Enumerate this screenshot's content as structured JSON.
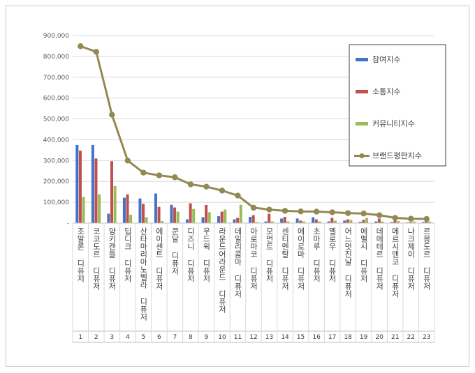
{
  "chart_data": {
    "type": "bar",
    "categories": [
      "조말론 디퓨저",
      "코코도르 디퓨저",
      "양키캔들 디퓨저",
      "딥디크 디퓨저",
      "산타마리아노벨라 디퓨저",
      "에이센트 디퓨저",
      "쿤달 디퓨저",
      "디즈니 디퓨저",
      "우드윅 디퓨저",
      "라운드어라운드 디퓨저",
      "데일리콤마 디퓨저",
      "아로마코 디퓨저",
      "모먼트 디퓨저",
      "센티멘탈 디퓨저",
      "에이로마 디퓨저",
      "초마루 디퓨저",
      "멜로우 디퓨저",
      "어느멋진날 디퓨저",
      "에멜시 디퓨저",
      "데메테르 디퓨저",
      "메르시앤코 디퓨저",
      "나크제이 디퓨저",
      "르몽도르 디퓨저"
    ],
    "index_labels": [
      "1",
      "2",
      "3",
      "4",
      "5",
      "6",
      "7",
      "8",
      "9",
      "10",
      "11",
      "12",
      "13",
      "14",
      "15",
      "16",
      "17",
      "18",
      "19",
      "20",
      "21",
      "22",
      "23"
    ],
    "series": [
      {
        "name": "참여지수",
        "kind": "bar",
        "color": "#4472c4",
        "values": [
          375000,
          375000,
          45000,
          122000,
          118000,
          142000,
          88000,
          18000,
          28000,
          33000,
          18000,
          30000,
          8000,
          22000,
          22000,
          28000,
          8000,
          12000,
          6000,
          8000,
          5000,
          3000,
          5000
        ]
      },
      {
        "name": "소통지수",
        "kind": "bar",
        "color": "#c0504d",
        "values": [
          348000,
          310000,
          297000,
          138000,
          92000,
          78000,
          75000,
          95000,
          87000,
          55000,
          25000,
          38000,
          45000,
          30000,
          12000,
          18000,
          25000,
          18000,
          15000,
          22000,
          12000,
          5000,
          8000
        ]
      },
      {
        "name": "커뮤니티지수",
        "kind": "bar",
        "color": "#9bbb59",
        "values": [
          125000,
          138000,
          178000,
          40000,
          28000,
          10000,
          55000,
          68000,
          52000,
          65000,
          88000,
          5000,
          8000,
          8000,
          8000,
          8000,
          12000,
          15000,
          25000,
          8000,
          10000,
          8000,
          8000
        ]
      },
      {
        "name": "브랜드평판지수",
        "kind": "line",
        "color": "#938953",
        "values": [
          849000,
          822000,
          520000,
          300000,
          242000,
          229000,
          220000,
          186000,
          175000,
          156000,
          132000,
          74000,
          65000,
          59000,
          56000,
          55000,
          52000,
          48000,
          46000,
          38000,
          25000,
          21000,
          20000
        ]
      }
    ],
    "y_ticks": [
      "-",
      "100,000",
      "200,000",
      "300,000",
      "400,000",
      "500,000",
      "600,000",
      "700,000",
      "800,000",
      "900,000"
    ],
    "ylim": [
      0,
      900000
    ],
    "grid": true,
    "legend_position": "right"
  }
}
